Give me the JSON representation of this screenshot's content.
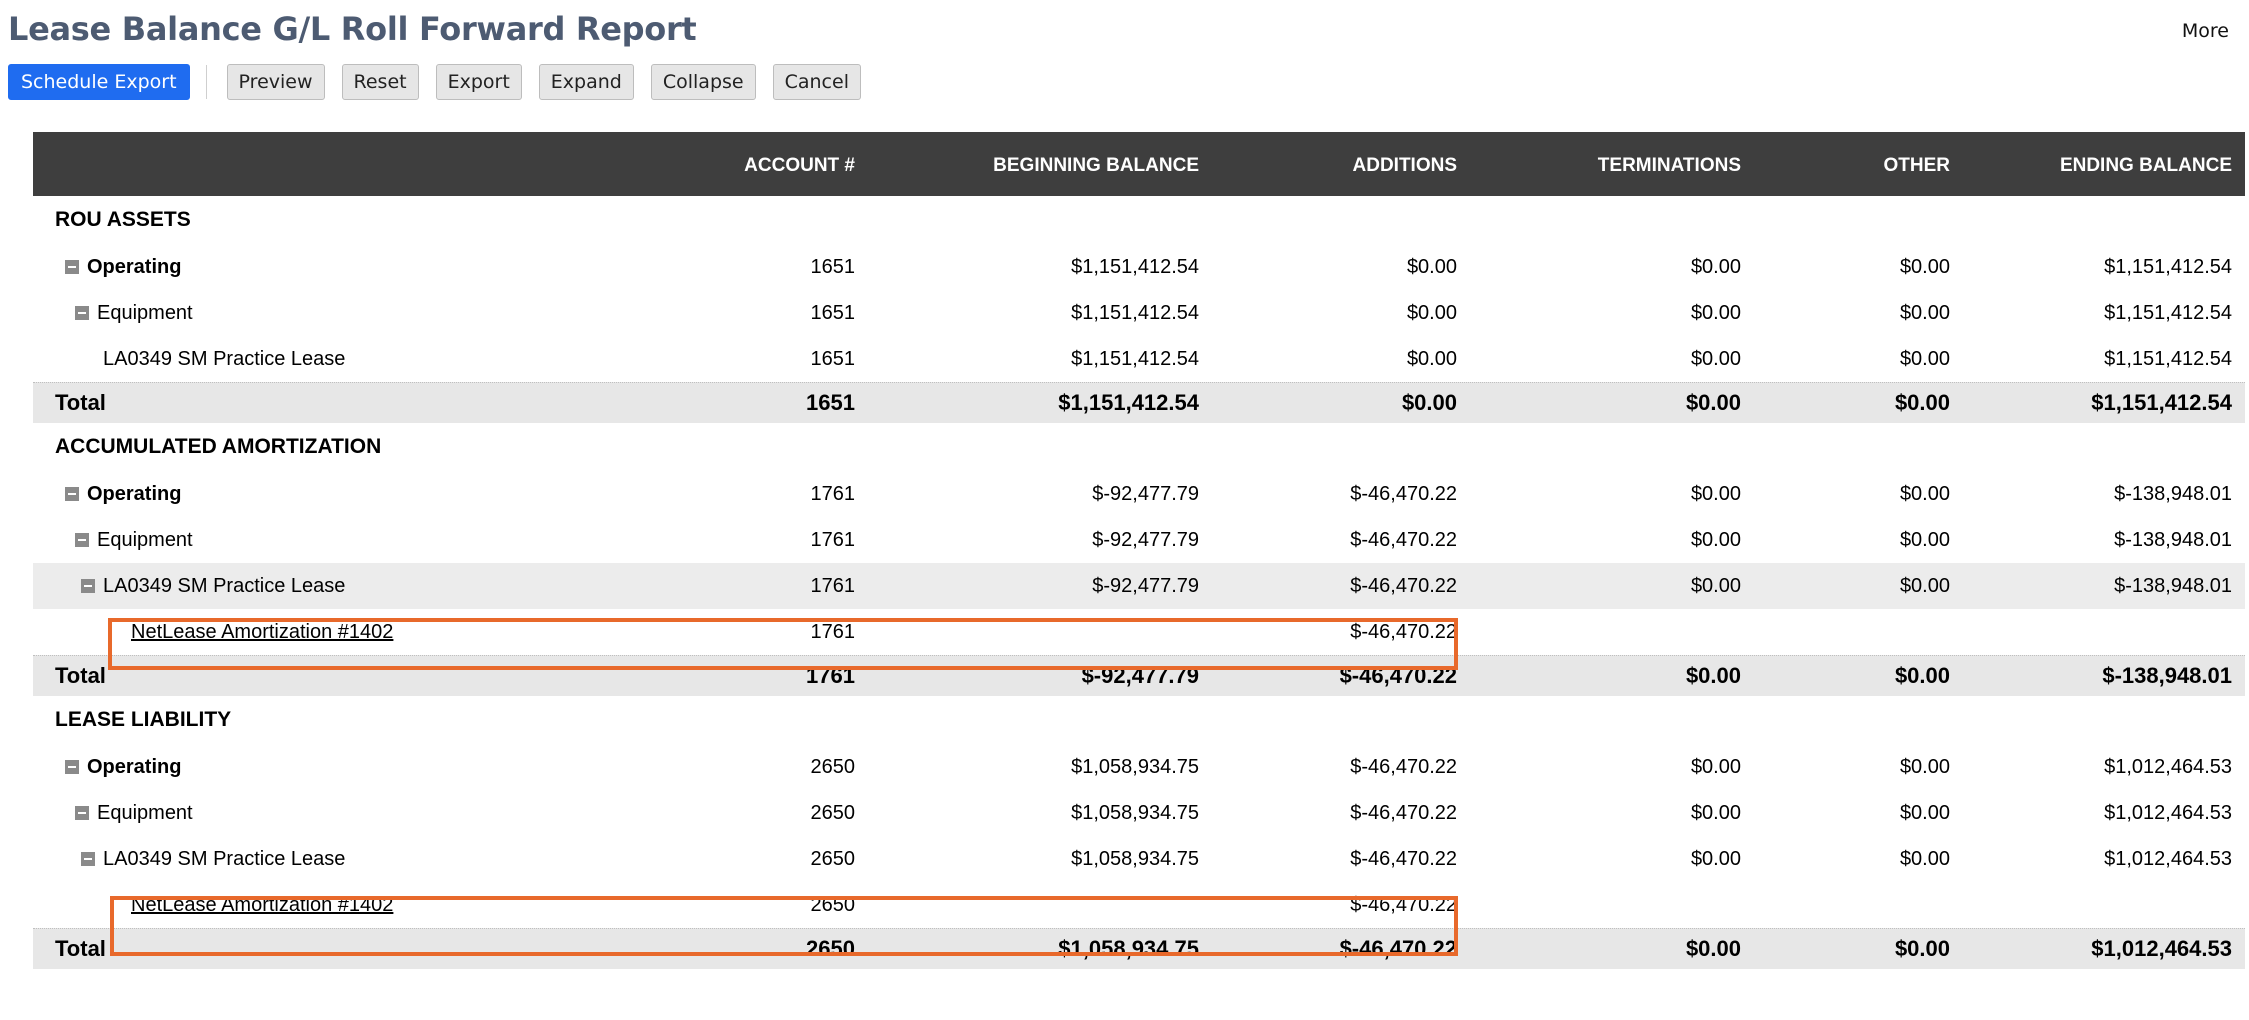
{
  "page": {
    "title": "Lease Balance G/L Roll Forward Report",
    "more_label": "More"
  },
  "toolbar": {
    "schedule_export": "Schedule Export",
    "preview": "Preview",
    "reset": "Reset",
    "export": "Export",
    "expand": "Expand",
    "collapse": "Collapse",
    "cancel": "Cancel"
  },
  "colors": {
    "primary_button": "#1f6cf0",
    "header_bg": "#3e3e3e",
    "title": "#4d5b72",
    "highlight_box": "#e8692b",
    "total_row_bg": "#e7e7e7"
  },
  "columns": {
    "account": "ACCOUNT #",
    "beginning": "BEGINNING BALANCE",
    "additions": "ADDITIONS",
    "terminations": "TERMINATIONS",
    "other": "OTHER",
    "ending": "ENDING BALANCE"
  },
  "rou": {
    "title": "ROU ASSETS",
    "operating": {
      "label": "Operating",
      "account": "1651",
      "beginning": "$1,151,412.54",
      "additions": "$0.00",
      "terminations": "$0.00",
      "other": "$0.00",
      "ending": "$1,151,412.54"
    },
    "equipment": {
      "label": "Equipment",
      "account": "1651",
      "beginning": "$1,151,412.54",
      "additions": "$0.00",
      "terminations": "$0.00",
      "other": "$0.00",
      "ending": "$1,151,412.54"
    },
    "lease": {
      "label": "LA0349 SM Practice Lease",
      "account": "1651",
      "beginning": "$1,151,412.54",
      "additions": "$0.00",
      "terminations": "$0.00",
      "other": "$0.00",
      "ending": "$1,151,412.54"
    },
    "total": {
      "label": "Total",
      "account": "1651",
      "beginning": "$1,151,412.54",
      "additions": "$0.00",
      "terminations": "$0.00",
      "other": "$0.00",
      "ending": "$1,151,412.54"
    }
  },
  "amort": {
    "title": "ACCUMULATED AMORTIZATION",
    "operating": {
      "label": "Operating",
      "account": "1761",
      "beginning": "$-92,477.79",
      "additions": "$-46,470.22",
      "terminations": "$0.00",
      "other": "$0.00",
      "ending": "$-138,948.01"
    },
    "equipment": {
      "label": "Equipment",
      "account": "1761",
      "beginning": "$-92,477.79",
      "additions": "$-46,470.22",
      "terminations": "$0.00",
      "other": "$0.00",
      "ending": "$-138,948.01"
    },
    "lease": {
      "label": "LA0349 SM Practice Lease",
      "account": "1761",
      "beginning": "$-92,477.79",
      "additions": "$-46,470.22",
      "terminations": "$0.00",
      "other": "$0.00",
      "ending": "$-138,948.01"
    },
    "entry": {
      "label": "NetLease Amortization #1402",
      "account": "1761",
      "additions": "$-46,470.22"
    },
    "total": {
      "label": "Total",
      "account": "1761",
      "beginning": "$-92,477.79",
      "additions": "$-46,470.22",
      "terminations": "$0.00",
      "other": "$0.00",
      "ending": "$-138,948.01"
    }
  },
  "liab": {
    "title": "LEASE LIABILITY",
    "operating": {
      "label": "Operating",
      "account": "2650",
      "beginning": "$1,058,934.75",
      "additions": "$-46,470.22",
      "terminations": "$0.00",
      "other": "$0.00",
      "ending": "$1,012,464.53"
    },
    "equipment": {
      "label": "Equipment",
      "account": "2650",
      "beginning": "$1,058,934.75",
      "additions": "$-46,470.22",
      "terminations": "$0.00",
      "other": "$0.00",
      "ending": "$1,012,464.53"
    },
    "lease": {
      "label": "LA0349 SM Practice Lease",
      "account": "2650",
      "beginning": "$1,058,934.75",
      "additions": "$-46,470.22",
      "terminations": "$0.00",
      "other": "$0.00",
      "ending": "$1,012,464.53"
    },
    "entry": {
      "label": "NetLease Amortization #1402",
      "account": "2650",
      "additions": "$-46,470.22"
    },
    "total": {
      "label": "Total",
      "account": "2650",
      "beginning": "$1,058,934.75",
      "additions": "$-46,470.22",
      "terminations": "$0.00",
      "other": "$0.00",
      "ending": "$1,012,464.53"
    }
  }
}
